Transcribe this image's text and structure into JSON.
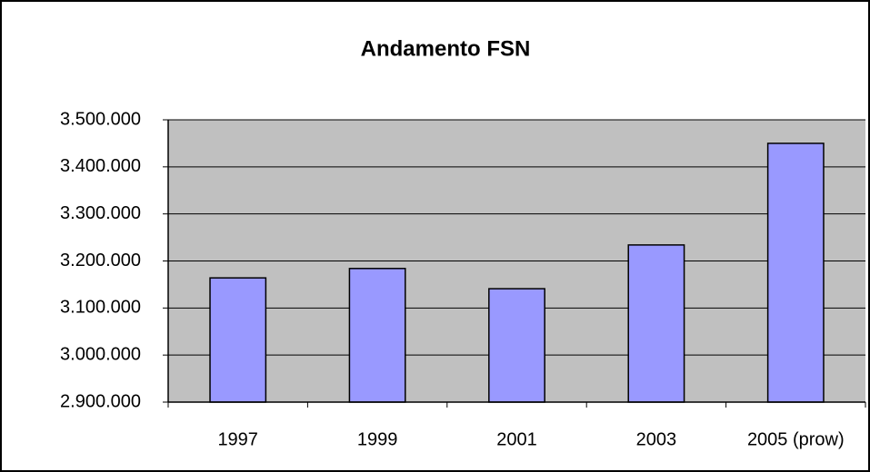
{
  "chart_data": {
    "type": "bar",
    "title": "Andamento FSN",
    "categories": [
      "1997",
      "1999",
      "2001",
      "2003",
      "2005 (prow)"
    ],
    "values": [
      3164000,
      3184000,
      3141000,
      3234000,
      3450000
    ],
    "color": "#9999ff",
    "ylim": [
      2900000,
      3500000
    ],
    "yticks": [
      {
        "value": 2900000,
        "label": "2.900.000"
      },
      {
        "value": 3000000,
        "label": "3.000.000"
      },
      {
        "value": 3100000,
        "label": "3.100.000"
      },
      {
        "value": 3200000,
        "label": "3.200.000"
      },
      {
        "value": 3300000,
        "label": "3.300.000"
      },
      {
        "value": 3400000,
        "label": "3.400.000"
      },
      {
        "value": 3500000,
        "label": "3.500.000"
      }
    ],
    "grid": true
  }
}
